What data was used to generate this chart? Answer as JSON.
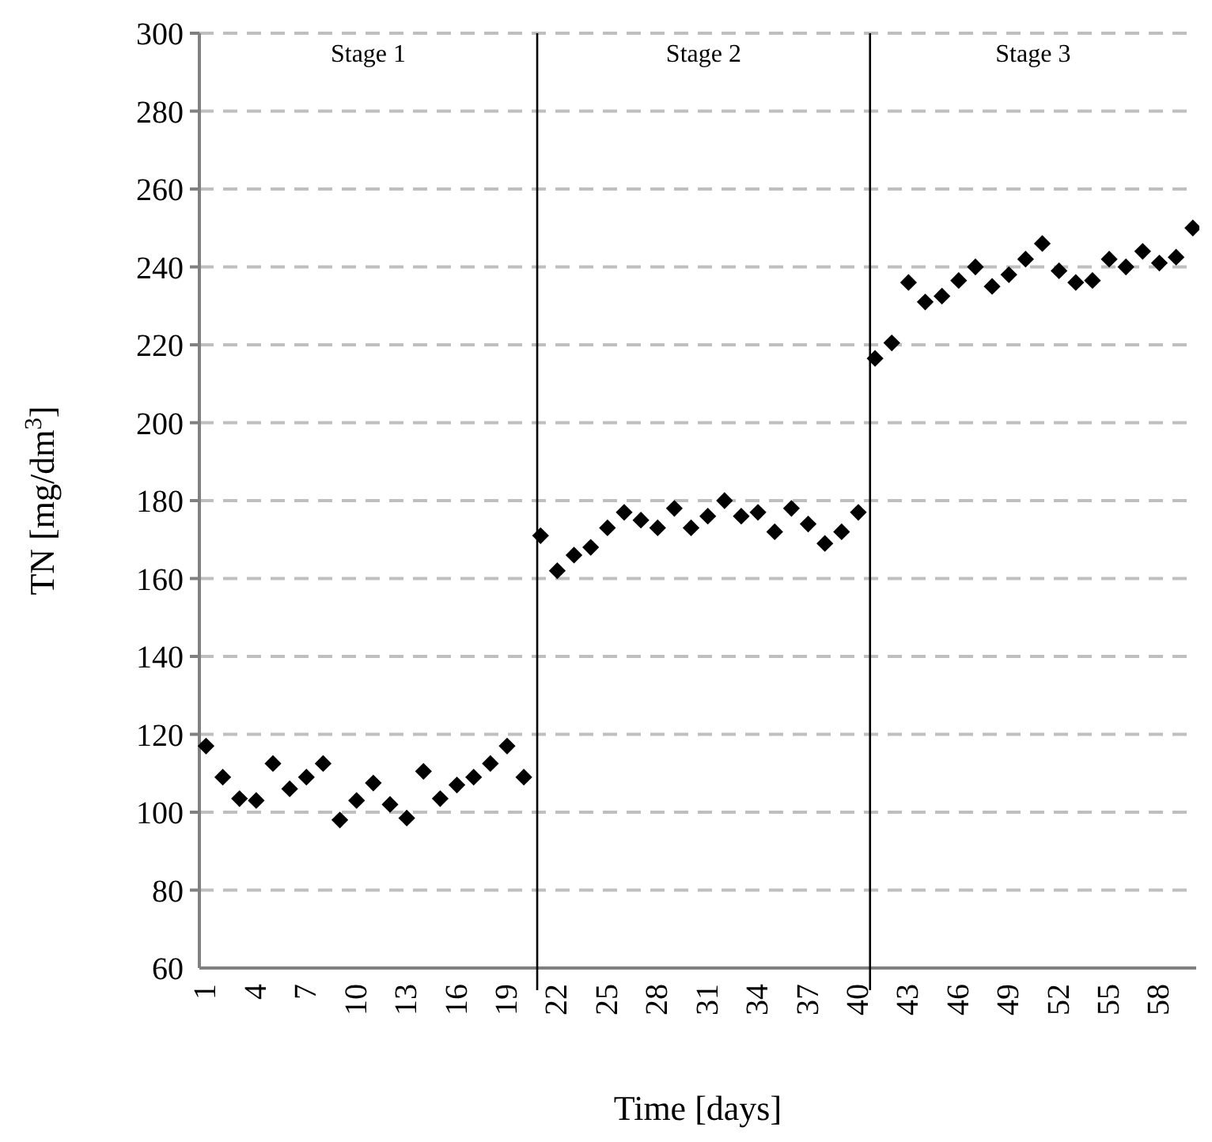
{
  "chart_data": {
    "type": "scatter",
    "xlabel": "Time [days]",
    "ylabel": "TN [mg/dm$^{3}$]",
    "x": [
      1,
      2,
      3,
      4,
      5,
      6,
      7,
      8,
      9,
      10,
      11,
      12,
      13,
      14,
      15,
      16,
      17,
      18,
      19,
      20,
      21,
      22,
      23,
      24,
      25,
      26,
      27,
      28,
      29,
      30,
      31,
      32,
      33,
      34,
      35,
      36,
      37,
      38,
      39,
      40,
      41,
      42,
      43,
      44,
      45,
      46,
      47,
      48,
      49,
      50,
      51,
      52,
      53,
      54,
      55,
      56,
      57,
      58,
      59,
      60
    ],
    "series": [
      {
        "color": "#000000",
        "values": [
          117,
          109,
          103.5,
          103,
          112.5,
          106,
          109,
          112.5,
          98,
          103,
          107.5,
          102,
          98.5,
          110.5,
          103.5,
          107,
          109,
          112.5,
          117,
          109,
          171,
          162,
          166,
          168,
          173,
          177,
          175,
          173,
          178,
          173,
          176,
          180,
          176,
          177,
          172,
          178,
          174,
          169,
          172,
          177,
          216.5,
          220.5,
          236,
          231,
          232.5,
          236.5,
          240,
          235,
          238,
          242,
          246,
          239,
          236,
          236.5,
          242,
          240,
          244,
          241,
          242.5,
          250
        ]
      }
    ],
    "xlim": [
      0.6,
      60.2
    ],
    "xticks": [
      1,
      4,
      7,
      10,
      13,
      16,
      19,
      22,
      25,
      28,
      31,
      34,
      37,
      40,
      43,
      46,
      49,
      52,
      55,
      58
    ],
    "ylim": [
      60,
      300
    ],
    "yticks": [
      60,
      80,
      100,
      120,
      140,
      160,
      180,
      200,
      220,
      240,
      260,
      280,
      300
    ],
    "grid": "y",
    "marker": "diamond",
    "ref_lines": [
      {
        "axis": "x",
        "value": 20.8,
        "color": "#000000",
        "line_style": "solid"
      },
      {
        "axis": "x",
        "value": 40.7,
        "color": "#000000",
        "line_style": "solid"
      }
    ],
    "annotations": [
      "Stage 1",
      "Stage 2",
      "Stage 3"
    ]
  }
}
